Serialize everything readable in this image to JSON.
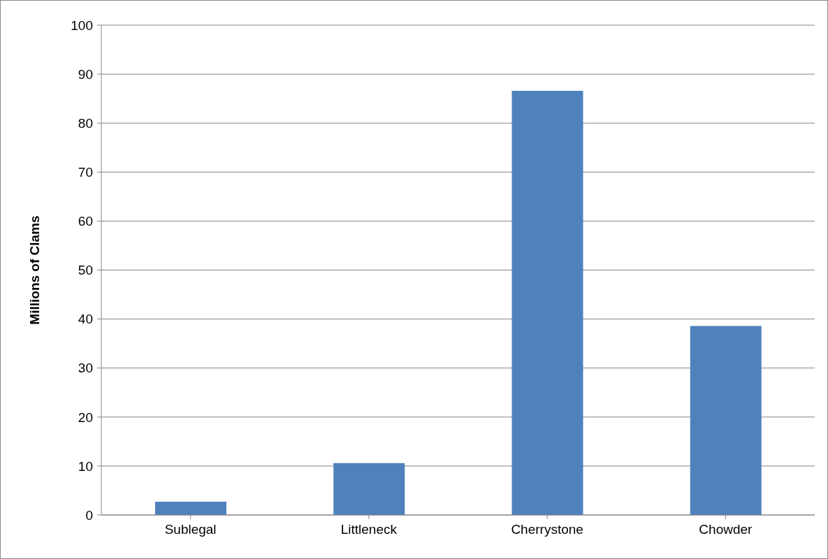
{
  "chart_data": {
    "type": "bar",
    "ylabel": "Millions of Clams",
    "categories": [
      "Sublegal",
      "Littleneck",
      "Cherrystone",
      "Chowder"
    ],
    "values": [
      2.7,
      10.6,
      86.6,
      38.6
    ],
    "color": "#4f81bd",
    "ylim": [
      0,
      100
    ],
    "yticks": [
      0,
      10,
      20,
      30,
      40,
      50,
      60,
      70,
      80,
      90,
      100
    ],
    "grid": "y"
  }
}
